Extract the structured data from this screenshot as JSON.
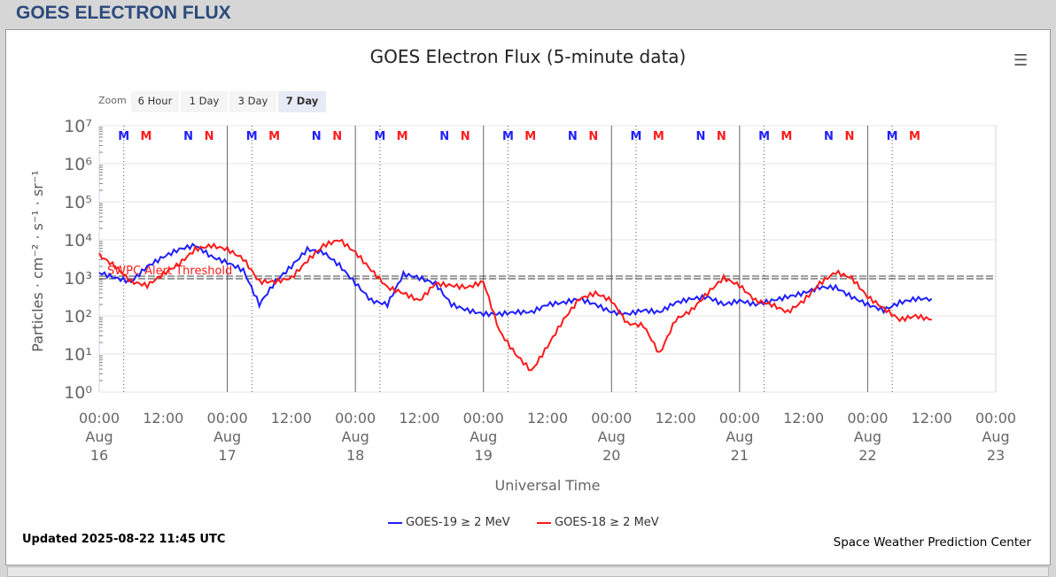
{
  "header": {
    "title": "GOES ELECTRON FLUX"
  },
  "zoom": {
    "label": "Zoom",
    "buttons": [
      "6 Hour",
      "1 Day",
      "3 Day",
      "7 Day"
    ],
    "selected": "7 Day"
  },
  "footer": {
    "updated": "Updated 2025-08-22 11:45 UTC",
    "credit": "Space Weather Prediction Center"
  },
  "colors": {
    "goes19": "#1f1fff",
    "goes18": "#ff1a1a"
  },
  "chart_data": {
    "type": "line",
    "title": "GOES Electron Flux (5-minute data)",
    "xlabel": "Universal Time",
    "ylabel": "Particles · cm⁻² · s⁻¹ · sr⁻¹",
    "yscale": "log",
    "ylim_exp": [
      0,
      7
    ],
    "ytick_labels": [
      "10⁰",
      "10¹",
      "10²",
      "10³",
      "10⁴",
      "10⁵",
      "10⁶",
      "10⁷"
    ],
    "xlim_hours": [
      0,
      168
    ],
    "xtick_labels": [
      [
        "00:00",
        "Aug",
        "16"
      ],
      [
        "12:00"
      ],
      [
        "00:00",
        "Aug",
        "17"
      ],
      [
        "12:00"
      ],
      [
        "00:00",
        "Aug",
        "18"
      ],
      [
        "12:00"
      ],
      [
        "00:00",
        "Aug",
        "19"
      ],
      [
        "12:00"
      ],
      [
        "00:00",
        "Aug",
        "20"
      ],
      [
        "12:00"
      ],
      [
        "00:00",
        "Aug",
        "21"
      ],
      [
        "12:00"
      ],
      [
        "00:00",
        "Aug",
        "22"
      ],
      [
        "12:00"
      ],
      [
        "00:00",
        "Aug",
        "23"
      ]
    ],
    "threshold": {
      "label": "SWPC Alert Threshold",
      "value": 1000
    },
    "markers": [
      {
        "label": "M",
        "color": "blue"
      },
      {
        "label": "M",
        "color": "red"
      },
      {
        "label": "N",
        "color": "blue"
      },
      {
        "label": "N",
        "color": "red"
      }
    ],
    "series": [
      {
        "name": "GOES-19 ≥ 2 MeV",
        "color": "#1f1fff",
        "step_hours": 3,
        "log10_values": [
          3.14,
          3.0,
          2.9,
          3.3,
          3.55,
          3.75,
          3.86,
          3.56,
          3.4,
          3.2,
          2.3,
          2.9,
          3.3,
          3.75,
          3.67,
          3.33,
          2.86,
          2.4,
          2.3,
          3.1,
          3.0,
          2.85,
          2.3,
          2.15,
          2.05,
          2.05,
          2.1,
          2.1,
          2.3,
          2.35,
          2.45,
          2.3,
          2.1,
          2.05,
          2.15,
          2.1,
          2.35,
          2.45,
          2.5,
          2.3,
          2.4,
          2.3,
          2.4,
          2.5,
          2.6,
          2.75,
          2.75,
          2.5,
          2.3,
          2.15,
          2.35,
          2.45,
          2.45
        ]
      },
      {
        "name": "GOES-18 ≥ 2 MeV",
        "color": "#ff1a1a",
        "step_hours": 3,
        "log10_values": [
          3.6,
          3.3,
          2.9,
          2.8,
          3.1,
          3.37,
          3.75,
          3.85,
          3.75,
          3.5,
          2.9,
          2.9,
          3.0,
          3.45,
          3.85,
          4.0,
          3.67,
          3.2,
          2.75,
          2.6,
          2.4,
          2.85,
          2.8,
          2.75,
          2.9,
          1.6,
          1.0,
          0.55,
          1.2,
          1.9,
          2.45,
          2.6,
          2.4,
          1.8,
          1.75,
          1.0,
          1.9,
          2.15,
          2.6,
          3.0,
          2.8,
          2.4,
          2.3,
          2.1,
          2.4,
          2.85,
          3.15,
          3.0,
          2.5,
          2.2,
          1.9,
          2.0,
          1.9
        ]
      }
    ],
    "legend": "bottom-center"
  }
}
